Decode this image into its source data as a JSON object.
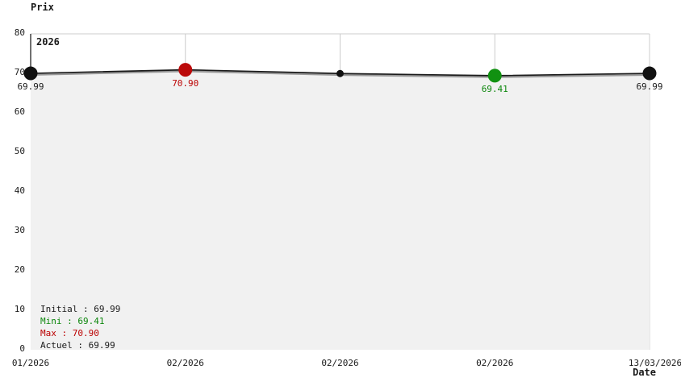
{
  "chart": {
    "y_axis_title": "Prix",
    "x_axis_title": "Date",
    "period_label": "2026"
  },
  "colors": {
    "line": "#1a1a1a",
    "line_shadow": "#999999",
    "area_fill": "#f1f1f1",
    "grid": "#cccccc",
    "axis": "#333333",
    "point_black": "#111111",
    "point_max_red": "#bb0a0a",
    "point_min_green": "#119111",
    "text_black": "#1a1a1a",
    "text_red": "#bb0000",
    "text_green": "#0c870c"
  },
  "chart_data": {
    "type": "line",
    "title": "",
    "xlabel": "Date",
    "ylabel": "Prix",
    "ylim": [
      0,
      80
    ],
    "y_ticks": [
      80,
      70,
      60,
      50,
      40,
      30,
      20,
      10,
      0
    ],
    "x_tick_labels": [
      "01/2026",
      "02/2026",
      "02/2026",
      "02/2026",
      "13/03/2026"
    ],
    "grid": "vertical-gridlines-plus-top-border",
    "area_fill": true,
    "points": [
      {
        "date": "01/2026",
        "value": 69.99,
        "label": "69.99",
        "marker": "large",
        "color_key": "black"
      },
      {
        "date": "02/2026",
        "value": 70.9,
        "label": "70.90",
        "marker": "large",
        "color_key": "max_red"
      },
      {
        "date": "02/2026",
        "value": 69.95,
        "label": "",
        "marker": "small",
        "color_key": "black"
      },
      {
        "date": "02/2026",
        "value": 69.41,
        "label": "69.41",
        "marker": "large",
        "color_key": "min_green"
      },
      {
        "date": "13/03/2026",
        "value": 69.99,
        "label": "69.99",
        "marker": "large",
        "color_key": "black"
      }
    ]
  },
  "legend": {
    "initial": "Initial : 69.99",
    "mini": "Mini : 69.41",
    "max": "Max : 70.90",
    "actuel": "Actuel : 69.99"
  }
}
